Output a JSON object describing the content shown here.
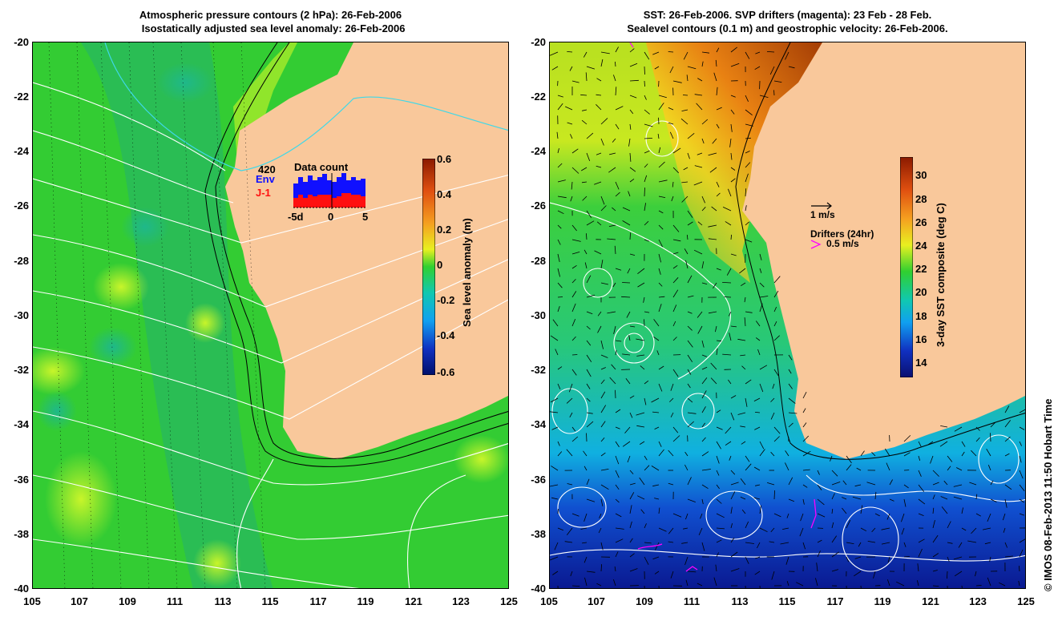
{
  "left_panel": {
    "title": "Atmospheric pressure contours (2 hPa): 26-Feb-2006\n  Isostatically adjusted sea level anomaly: 26-Feb-2006",
    "y_ticks": [
      "-20",
      "-22",
      "-24",
      "-26",
      "-28",
      "-30",
      "-32",
      "-34",
      "-36",
      "-38",
      "-40"
    ],
    "x_ticks": [
      "105",
      "107",
      "109",
      "111",
      "113",
      "115",
      "117",
      "119",
      "121",
      "123",
      "125"
    ],
    "colorbar": {
      "title": "Sea level anomaly (m)",
      "ticks": [
        "0.6",
        "0.4",
        "0.2",
        "0",
        "-0.2",
        "-0.4",
        "-0.6"
      ]
    },
    "inset": {
      "title": "Data count",
      "count": "420",
      "env_label": "Env",
      "j1_label": "J-1",
      "x_ticks": [
        "-5d",
        "0",
        "5"
      ],
      "env_color": "#1010ff",
      "j1_color": "#ff1010"
    }
  },
  "right_panel": {
    "title": "SST: 26-Feb-2006. SVP drifters (magenta): 23 Feb - 28 Feb.\nSealevel contours (0.1 m) and geostrophic velocity: 26-Feb-2006.",
    "y_ticks": [
      "-20",
      "-22",
      "-24",
      "-26",
      "-28",
      "-30",
      "-32",
      "-34",
      "-36",
      "-38",
      "-40"
    ],
    "x_ticks": [
      "105",
      "107",
      "109",
      "111",
      "113",
      "115",
      "117",
      "119",
      "121",
      "123",
      "125"
    ],
    "colorbar": {
      "title": "3-day SST composite (deg C)",
      "ticks": [
        "30",
        "28",
        "26",
        "24",
        "22",
        "20",
        "18",
        "16",
        "14"
      ]
    },
    "legend": {
      "velocity_label": "1 m/s",
      "drifters_title": "Drifters (24hr)",
      "drifters_label": "0.5 m/s",
      "drifter_color": "#ff00ff"
    }
  },
  "credit": "© IMOS 08-Feb-2013 11:50 Hobart Time",
  "colors": {
    "land": "#f9c89b",
    "ocean_green": "#2fd22f",
    "contour": "#ffffff",
    "isobar": "#3fd8e8"
  }
}
